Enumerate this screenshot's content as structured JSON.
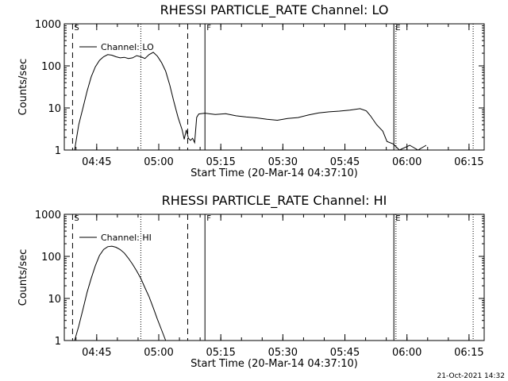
{
  "footer": {
    "timestamp": "21-Oct-2021 14:32"
  },
  "chart_data": [
    {
      "type": "line",
      "title": "RHESSI PARTICLE_RATE Channel: LO",
      "xlabel": "Start Time (20-Mar-14 04:37:10)",
      "ylabel": "Counts/sec",
      "xlim": [
        "04:37:10",
        "06:18:40"
      ],
      "ylim": [
        1,
        1000
      ],
      "yscale": "log",
      "xticks": [
        "04:45",
        "05:00",
        "05:15",
        "05:30",
        "05:45",
        "06:00",
        "06:15"
      ],
      "yticks": [
        "1",
        "10",
        "100",
        "1000"
      ],
      "legend": {
        "label": "Channel: LO",
        "placement": "top-left"
      },
      "series": [
        {
          "name": "Channel: LO",
          "points": [
            [
              "04:39:40",
              1
            ],
            [
              "04:40:10",
              2
            ],
            [
              "04:40:40",
              4
            ],
            [
              "04:41:40",
              10
            ],
            [
              "04:42:40",
              25
            ],
            [
              "04:43:40",
              55
            ],
            [
              "04:44:40",
              95
            ],
            [
              "04:45:40",
              135
            ],
            [
              "04:46:40",
              165
            ],
            [
              "04:47:40",
              185
            ],
            [
              "04:48:40",
              180
            ],
            [
              "04:49:40",
              165
            ],
            [
              "04:50:40",
              155
            ],
            [
              "04:51:40",
              160
            ],
            [
              "04:52:40",
              150
            ],
            [
              "04:53:40",
              155
            ],
            [
              "04:54:40",
              175
            ],
            [
              "04:55:40",
              165
            ],
            [
              "04:56:40",
              150
            ],
            [
              "04:57:40",
              185
            ],
            [
              "04:58:40",
              210
            ],
            [
              "04:59:40",
              170
            ],
            [
              "05:00:40",
              120
            ],
            [
              "05:01:40",
              75
            ],
            [
              "05:02:40",
              35
            ],
            [
              "05:03:40",
              14
            ],
            [
              "05:04:40",
              6
            ],
            [
              "05:05:40",
              3
            ],
            [
              "05:06:10",
              1.8
            ],
            [
              "05:06:40",
              3
            ],
            [
              "05:07:10",
              1.9
            ],
            [
              "05:07:40",
              1.7
            ],
            [
              "05:08:10",
              1.9
            ],
            [
              "05:08:40",
              1.5
            ],
            [
              "05:09:10",
              6
            ],
            [
              "05:09:40",
              7.2
            ],
            [
              "05:11:10",
              7.5
            ],
            [
              "05:13:40",
              7.0
            ],
            [
              "05:16:10",
              7.3
            ],
            [
              "05:18:40",
              6.5
            ],
            [
              "05:21:10",
              6.1
            ],
            [
              "05:23:40",
              5.8
            ],
            [
              "05:26:10",
              5.4
            ],
            [
              "05:28:40",
              5.1
            ],
            [
              "05:31:10",
              5.6
            ],
            [
              "05:33:40",
              5.9
            ],
            [
              "05:36:10",
              6.8
            ],
            [
              "05:38:40",
              7.6
            ],
            [
              "05:41:10",
              8.1
            ],
            [
              "05:43:40",
              8.4
            ],
            [
              "05:46:10",
              8.9
            ],
            [
              "05:48:40",
              9.6
            ],
            [
              "05:50:10",
              8.5
            ],
            [
              "05:51:10",
              6.5
            ],
            [
              "05:52:40",
              4.0
            ],
            [
              "05:54:10",
              2.8
            ],
            [
              "05:55:10",
              1.6
            ],
            [
              "05:56:40",
              1.4
            ],
            [
              "05:58:10",
              1.0
            ],
            [
              "06:00:40",
              1.3
            ],
            [
              "06:02:40",
              1.0
            ],
            [
              "06:04:40",
              1.3
            ]
          ]
        }
      ],
      "markers": [
        {
          "label": "S",
          "time": "04:39:10",
          "style": "dashed"
        },
        {
          "label": "",
          "time": "04:55:40",
          "style": "dotted"
        },
        {
          "label": "",
          "time": "05:07:00",
          "style": "dashed"
        },
        {
          "label": "F",
          "time": "05:11:10",
          "style": "solid"
        },
        {
          "label": "E",
          "time": "05:56:50",
          "style": "solid"
        },
        {
          "label": "",
          "time": "05:57:20",
          "style": "dotted"
        },
        {
          "label": "",
          "time": "06:16:00",
          "style": "dotted"
        }
      ]
    },
    {
      "type": "line",
      "title": "RHESSI PARTICLE_RATE Channel: HI",
      "xlabel": "Start Time (20-Mar-14 04:37:10)",
      "ylabel": "Counts/sec",
      "xlim": [
        "04:37:10",
        "06:18:40"
      ],
      "ylim": [
        1,
        1000
      ],
      "yscale": "log",
      "xticks": [
        "04:45",
        "05:00",
        "05:15",
        "05:30",
        "05:45",
        "06:00",
        "06:15"
      ],
      "yticks": [
        "1",
        "10",
        "100",
        "1000"
      ],
      "legend": {
        "label": "Channel: HI",
        "placement": "top-left"
      },
      "series": [
        {
          "name": "Channel: HI",
          "points": [
            [
              "04:39:40",
              1
            ],
            [
              "04:40:40",
              2.2
            ],
            [
              "04:41:40",
              5.5
            ],
            [
              "04:42:40",
              14
            ],
            [
              "04:43:40",
              30
            ],
            [
              "04:44:40",
              60
            ],
            [
              "04:45:40",
              105
            ],
            [
              "04:46:40",
              145
            ],
            [
              "04:47:40",
              170
            ],
            [
              "04:48:40",
              175
            ],
            [
              "04:49:40",
              165
            ],
            [
              "04:50:40",
              145
            ],
            [
              "04:51:40",
              120
            ],
            [
              "04:52:40",
              90
            ],
            [
              "04:53:40",
              65
            ],
            [
              "04:54:40",
              45
            ],
            [
              "04:55:40",
              30
            ],
            [
              "04:56:40",
              18
            ],
            [
              "04:57:40",
              11
            ],
            [
              "04:58:40",
              6
            ],
            [
              "04:59:40",
              3.2
            ],
            [
              "05:00:40",
              1.8
            ],
            [
              "05:01:40",
              1
            ]
          ]
        }
      ],
      "markers": [
        {
          "label": "S",
          "time": "04:39:10",
          "style": "dashed"
        },
        {
          "label": "",
          "time": "04:55:40",
          "style": "dotted"
        },
        {
          "label": "",
          "time": "05:07:00",
          "style": "dashed"
        },
        {
          "label": "F",
          "time": "05:11:10",
          "style": "solid"
        },
        {
          "label": "E",
          "time": "05:56:50",
          "style": "solid"
        },
        {
          "label": "",
          "time": "05:57:20",
          "style": "dotted"
        },
        {
          "label": "",
          "time": "06:16:00",
          "style": "dotted"
        }
      ]
    }
  ]
}
